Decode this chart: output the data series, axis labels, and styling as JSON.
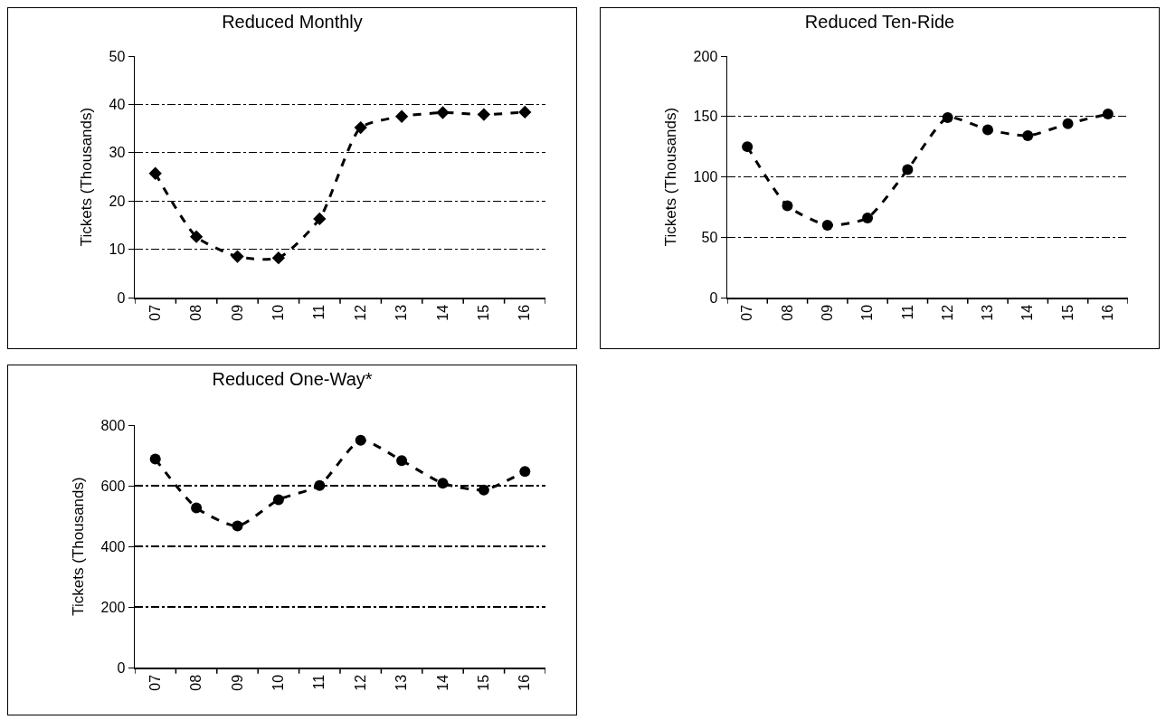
{
  "chart_data": [
    {
      "type": "line",
      "title": "Reduced Monthly",
      "ylabel": "Tickets (Thousands)",
      "categories": [
        "07",
        "08",
        "09",
        "10",
        "11",
        "12",
        "13",
        "14",
        "15",
        "16"
      ],
      "series": [
        {
          "color": "#000000",
          "values": [
            25.7,
            12.6,
            8.5,
            8.2,
            16.3,
            35.2,
            37.5,
            38.3,
            37.9,
            38.4
          ]
        }
      ],
      "ylim": [
        0,
        50
      ],
      "yticks": [
        0,
        10,
        20,
        30,
        40,
        50
      ],
      "grid": "y",
      "marker": "diamond",
      "line_style": "dashed"
    },
    {
      "type": "line",
      "title": "Reduced Ten-Ride",
      "ylabel": "Tickets (Thousands)",
      "categories": [
        "07",
        "08",
        "09",
        "10",
        "11",
        "12",
        "13",
        "14",
        "15",
        "16"
      ],
      "series": [
        {
          "color": "#000000",
          "values": [
            125,
            76,
            60,
            66,
            106,
            149,
            139,
            134,
            144,
            152
          ]
        }
      ],
      "ylim": [
        0,
        200
      ],
      "yticks": [
        0,
        50,
        100,
        150,
        200
      ],
      "grid": "y",
      "marker": "circle",
      "line_style": "dashed"
    },
    {
      "type": "line",
      "title": "Reduced One-Way*",
      "ylabel": "Tickets (Thousands)",
      "categories": [
        "07",
        "08",
        "09",
        "10",
        "11",
        "12",
        "13",
        "14",
        "15",
        "16"
      ],
      "series": [
        {
          "color": "#000000",
          "values": [
            688,
            527,
            467,
            554,
            601,
            750,
            683,
            608,
            586,
            647
          ]
        }
      ],
      "ylim": [
        0,
        800
      ],
      "yticks": [
        0,
        200,
        400,
        600,
        800
      ],
      "grid": "y",
      "marker": "circle",
      "line_style": "dashed"
    }
  ]
}
